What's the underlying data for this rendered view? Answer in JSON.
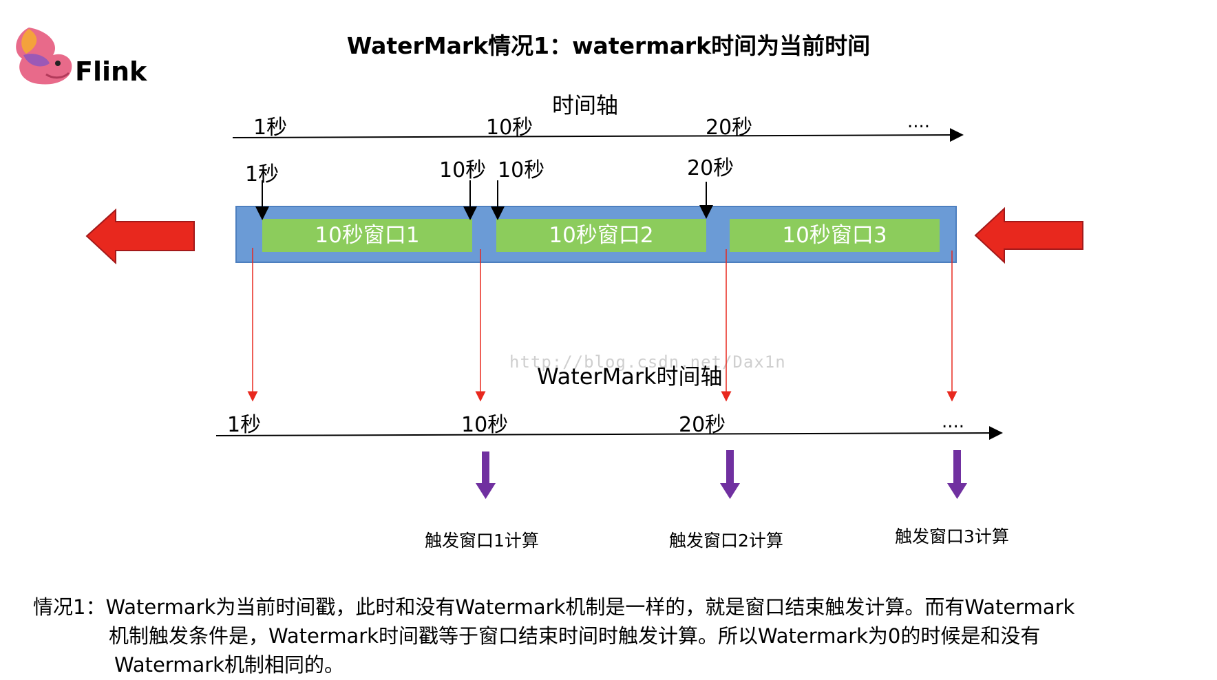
{
  "logo": {
    "text": "Flink"
  },
  "title": "WaterMark情况1：watermark时间为当前时间",
  "event_axis": {
    "label": "时间轴",
    "ticks": [
      "1秒",
      "10秒",
      "20秒",
      "...."
    ]
  },
  "event_markers": [
    "1秒",
    "10秒",
    "10秒",
    "20秒"
  ],
  "windows": [
    "10秒窗口1",
    "10秒窗口2",
    "10秒窗口3"
  ],
  "watermark": "http://blog.csdn.net/Dax1n",
  "watermark_axis": {
    "label": "WaterMark时间轴",
    "ticks": [
      "1秒",
      "10秒",
      "20秒",
      "...."
    ]
  },
  "triggers": [
    "触发窗口1计算",
    "触发窗口2计算",
    "触发窗口3计算"
  ],
  "description": {
    "line1": "情况1：Watermark为当前时间戳，此时和没有Watermark机制是一样的，就是窗口结束触发计算。而有Watermark",
    "line2": "机制触发条件是，Watermark时间戳等于窗口结束时间时触发计算。所以Watermark为0的时候是和没有",
    "line3": "Watermark机制相同的。"
  },
  "colors": {
    "band": "#6b9bd6",
    "window": "#8ccc5c",
    "big_arrow": "#e8281e",
    "trigger_arrow": "#7030a0",
    "drop_line": "#e8281e"
  }
}
